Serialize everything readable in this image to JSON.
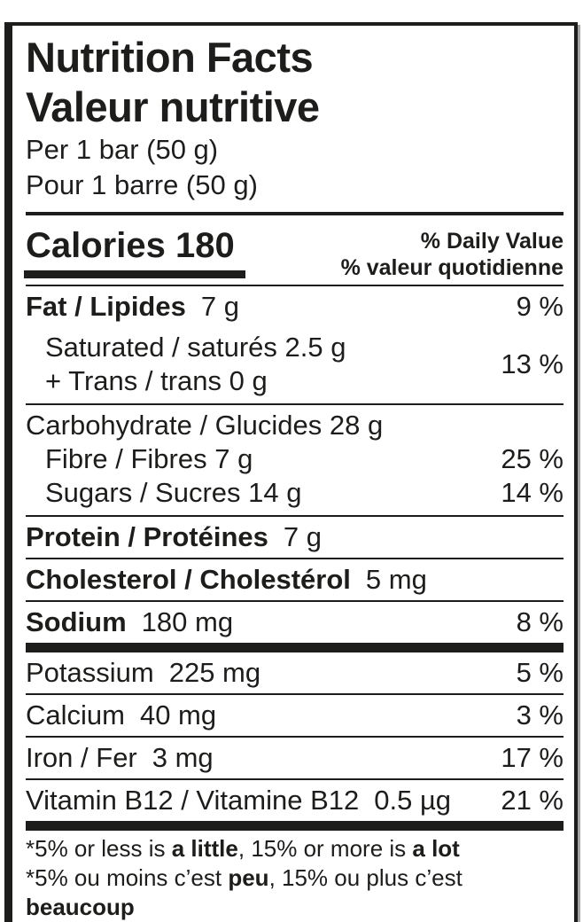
{
  "nutrition_label": {
    "title_en": "Nutrition Facts",
    "title_fr": "Valeur nutritive",
    "serving_en": "Per 1 bar (50 g)",
    "serving_fr": "Pour 1 barre (50 g)",
    "calories": {
      "label": "Calories",
      "value": "180"
    },
    "daily_value_header": {
      "line_en": "% Daily Value",
      "line_fr": "% valeur quotidienne"
    },
    "rows": {
      "fat": {
        "name": "Fat / Lipides",
        "amount": "7 g",
        "percent": "9 %"
      },
      "saturated_trans": {
        "line1": "Saturated / saturés 2.5 g",
        "line2": "+ Trans / trans 0 g",
        "percent": "13 %"
      },
      "carbohydrate": {
        "name": "Carbohydrate / Glucides",
        "amount": "28 g"
      },
      "fibre": {
        "name": "Fibre / Fibres",
        "amount": "7 g",
        "percent": "25 %"
      },
      "sugars": {
        "name": "Sugars / Sucres",
        "amount": "14 g",
        "percent": "14 %"
      },
      "protein": {
        "name": "Protein / Protéines",
        "amount": "7 g"
      },
      "cholesterol": {
        "name": "Cholesterol / Cholestérol",
        "amount": "5 mg"
      },
      "sodium": {
        "name": "Sodium",
        "amount": "180 mg",
        "percent": "8 %"
      },
      "potassium": {
        "name": "Potassium",
        "amount": "225 mg",
        "percent": "5 %"
      },
      "calcium": {
        "name": "Calcium",
        "amount": "40 mg",
        "percent": "3 %"
      },
      "iron": {
        "name": "Iron / Fer",
        "amount": "3 mg",
        "percent": "17 %"
      },
      "vitamin_b12": {
        "name": "Vitamin B12 / Vitamine B12",
        "amount": "0.5 µg",
        "percent": "21 %"
      }
    },
    "footnote_en": {
      "seg1": "*5% or less is ",
      "seg2": "a little",
      "seg3": ", 15% or more is ",
      "seg4": "a lot"
    },
    "footnote_fr": {
      "seg1": "*5% ou moins c’est ",
      "seg2": "peu",
      "seg3": ", 15% ou plus c’est ",
      "seg4": "beaucoup"
    },
    "colors": {
      "text": "#1d1d1b",
      "background": "#ffffff",
      "shadow": "#a5a5a5"
    }
  }
}
